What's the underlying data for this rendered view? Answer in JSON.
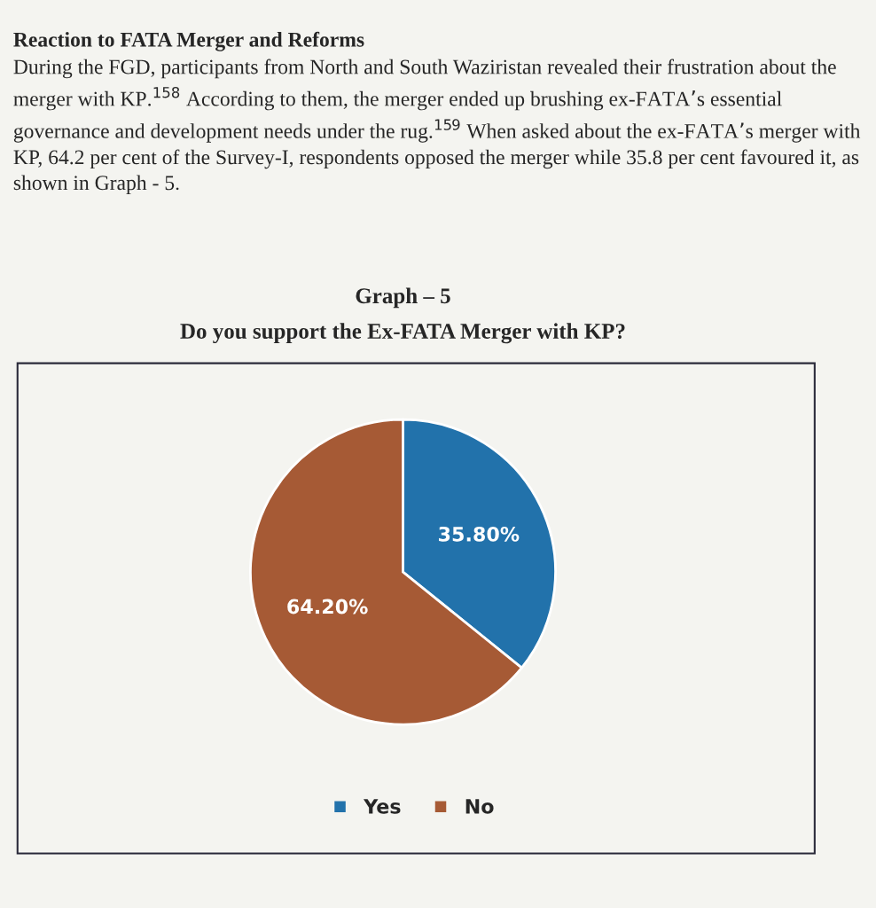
{
  "chart_data": {
    "type": "pie",
    "title": "Graph – 5",
    "subtitle": "Do you support the Ex-FATA Merger with KP?",
    "annotations": [
      "Reaction to FATA Merger and Reforms",
      "During the FGD, participants from North and South Waziristan revealed their frustration about the merger with KP.$^{158}$ According to them, the merger ended up brushing ex-FATA’s essential governance and development needs under the rug.$^{159}$ When asked about the ex-FATA’s merger with KP, 64.2 per cent of the Survey-I, respondents opposed the merger while 35.8 per cent favoured it, as shown in Graph - 5."
    ],
    "categories": [
      "Yes",
      "No"
    ],
    "values": [
      35.8,
      64.2
    ],
    "value_labels": [
      "35.80%",
      "64.20%"
    ],
    "colors": [
      "#2272ab",
      "#a65a35"
    ],
    "legend": "bottom"
  }
}
